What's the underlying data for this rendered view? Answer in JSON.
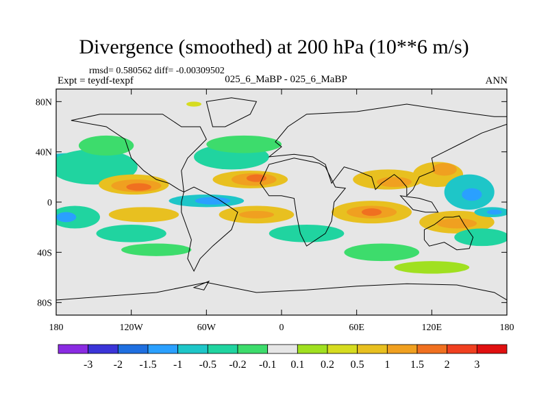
{
  "title": "Divergence (smoothed) at 200 hPa (10**6 m/s)",
  "stats": "rmsd= 0.580562 diff= -0.00309502",
  "expt": "Expt = teydf-texpf",
  "center_label": "025_6_MaBP - 025_6_MaBP",
  "season": "ANN",
  "map": {
    "lat_range": [
      -90,
      90
    ],
    "lon_range": [
      -180,
      180
    ],
    "lat_ticks": [
      {
        "value": 80,
        "label": "80N"
      },
      {
        "value": 40,
        "label": "40N"
      },
      {
        "value": 0,
        "label": "0"
      },
      {
        "value": -40,
        "label": "40S"
      },
      {
        "value": -80,
        "label": "80S"
      }
    ],
    "lon_ticks": [
      {
        "value": -180,
        "label": "180"
      },
      {
        "value": -120,
        "label": "120W"
      },
      {
        "value": -60,
        "label": "60W"
      },
      {
        "value": 0,
        "label": "0"
      },
      {
        "value": 60,
        "label": "60E"
      },
      {
        "value": 120,
        "label": "120E"
      },
      {
        "value": 180,
        "label": "180"
      }
    ],
    "background_color": "#e6e6e6",
    "regions": [
      {
        "name": "n-pacific-blue",
        "level": -1,
        "lon": -170,
        "lat": 30,
        "rx": 28,
        "ry": 9
      },
      {
        "name": "n-pacific-cyan",
        "level": -0.5,
        "lon": -150,
        "lat": 28,
        "rx": 35,
        "ry": 14
      },
      {
        "name": "n-pacific-green",
        "level": -0.2,
        "lon": -140,
        "lat": 45,
        "rx": 22,
        "ry": 8
      },
      {
        "name": "n-atlantic-cyan",
        "level": -0.5,
        "lon": -40,
        "lat": 36,
        "rx": 30,
        "ry": 10
      },
      {
        "name": "n-atlantic-green",
        "level": -0.2,
        "lon": -30,
        "lat": 46,
        "rx": 30,
        "ry": 7
      },
      {
        "name": "w-pacific-warm-yellow",
        "level": 0.5,
        "lon": -118,
        "lat": 14,
        "rx": 28,
        "ry": 8
      },
      {
        "name": "w-pacific-warm-orange",
        "level": 1,
        "lon": -116,
        "lat": 13,
        "rx": 20,
        "ry": 5
      },
      {
        "name": "w-pacific-warm-core",
        "level": 1.5,
        "lon": -114,
        "lat": 12,
        "rx": 10,
        "ry": 3
      },
      {
        "name": "atlantic-warm-yellow",
        "level": 0.5,
        "lon": -25,
        "lat": 18,
        "rx": 30,
        "ry": 7
      },
      {
        "name": "atlantic-warm-orange",
        "level": 1,
        "lon": -22,
        "lat": 18,
        "rx": 18,
        "ry": 5
      },
      {
        "name": "atlantic-warm-core",
        "level": 1.5,
        "lon": -20,
        "lat": 19,
        "rx": 8,
        "ry": 3
      },
      {
        "name": "india-warm-yellow",
        "level": 0.5,
        "lon": 85,
        "lat": 18,
        "rx": 28,
        "ry": 8
      },
      {
        "name": "india-warm-orange",
        "level": 1,
        "lon": 90,
        "lat": 16,
        "rx": 14,
        "ry": 4
      },
      {
        "name": "n-pacific-e-yellow",
        "level": 0.5,
        "lon": 125,
        "lat": 22,
        "rx": 20,
        "ry": 10
      },
      {
        "name": "n-pacific-e-orange",
        "level": 1,
        "lon": 130,
        "lat": 26,
        "rx": 10,
        "ry": 5
      },
      {
        "name": "nw-pacific-blue",
        "level": -1,
        "lon": 150,
        "lat": 8,
        "rx": 20,
        "ry": 14
      },
      {
        "name": "nw-pacific-core",
        "level": -1.5,
        "lon": 152,
        "lat": 6,
        "rx": 8,
        "ry": 5
      },
      {
        "name": "equator-east-pacific-blue",
        "level": -1,
        "lon": -60,
        "lat": 1,
        "rx": 30,
        "ry": 5
      },
      {
        "name": "equator-east-pacific-core",
        "level": -1.5,
        "lon": -55,
        "lat": 1,
        "rx": 14,
        "ry": 3
      },
      {
        "name": "sh-pacific-cyan",
        "level": -0.5,
        "lon": -165,
        "lat": -12,
        "rx": 20,
        "ry": 9
      },
      {
        "name": "sh-pacific-blue",
        "level": -1.5,
        "lon": -172,
        "lat": -12,
        "rx": 8,
        "ry": 4
      },
      {
        "name": "sh-mid-yellow",
        "level": 0.5,
        "lon": -110,
        "lat": -10,
        "rx": 28,
        "ry": 6
      },
      {
        "name": "sh-mid-atlantic-yellow",
        "level": 0.5,
        "lon": -20,
        "lat": -10,
        "rx": 30,
        "ry": 7
      },
      {
        "name": "sh-mid-atlantic-orange",
        "level": 1,
        "lon": -20,
        "lat": -10,
        "rx": 14,
        "ry": 3
      },
      {
        "name": "indian-warm-yellow",
        "level": 0.5,
        "lon": 72,
        "lat": -8,
        "rx": 32,
        "ry": 9
      },
      {
        "name": "indian-warm-orange",
        "level": 1,
        "lon": 72,
        "lat": -8,
        "rx": 20,
        "ry": 5
      },
      {
        "name": "indian-warm-core",
        "level": 1.5,
        "lon": 72,
        "lat": -8,
        "rx": 8,
        "ry": 3
      },
      {
        "name": "sh-west-pacific-yellow",
        "level": 0.5,
        "lon": 140,
        "lat": -16,
        "rx": 30,
        "ry": 9
      },
      {
        "name": "sh-west-pacific-orange",
        "level": 1,
        "lon": 140,
        "lat": -17,
        "rx": 16,
        "ry": 4
      },
      {
        "name": "sh-east-pacific-blue",
        "level": -1,
        "lon": 168,
        "lat": -8,
        "rx": 14,
        "ry": 4
      },
      {
        "name": "sh-east-pacific-core",
        "level": -1.5,
        "lon": 170,
        "lat": -8,
        "rx": 6,
        "ry": 2
      },
      {
        "name": "s-ocean-cyan",
        "level": -0.5,
        "lon": -120,
        "lat": -25,
        "rx": 28,
        "ry": 7
      },
      {
        "name": "s-ocean-cyan-2",
        "level": -0.5,
        "lon": 20,
        "lat": -25,
        "rx": 30,
        "ry": 7
      },
      {
        "name": "s-ocean-green",
        "level": -0.2,
        "lon": 80,
        "lat": -40,
        "rx": 30,
        "ry": 7
      },
      {
        "name": "s-ocean-cyan-3",
        "level": -0.5,
        "lon": 160,
        "lat": -28,
        "rx": 22,
        "ry": 7
      },
      {
        "name": "s-ocean-green-2",
        "level": -0.2,
        "lon": -100,
        "lat": -38,
        "rx": 28,
        "ry": 5
      },
      {
        "name": "far-south-green",
        "level": 0.1,
        "lon": 120,
        "lat": -52,
        "rx": 30,
        "ry": 5
      },
      {
        "name": "arctic-green",
        "level": 0.2,
        "lon": -70,
        "lat": 78,
        "rx": 6,
        "ry": 2
      }
    ],
    "continents": [
      {
        "name": "north-america",
        "points": [
          [
            -168,
            65
          ],
          [
            -140,
            60
          ],
          [
            -125,
            50
          ],
          [
            -120,
            35
          ],
          [
            -110,
            25
          ],
          [
            -100,
            18
          ],
          [
            -90,
            15
          ],
          [
            -82,
            10
          ],
          [
            -78,
            8
          ],
          [
            -80,
            25
          ],
          [
            -75,
            35
          ],
          [
            -65,
            45
          ],
          [
            -60,
            50
          ],
          [
            -65,
            60
          ],
          [
            -80,
            60
          ],
          [
            -95,
            70
          ],
          [
            -120,
            70
          ],
          [
            -145,
            70
          ],
          [
            -168,
            65
          ]
        ]
      },
      {
        "name": "south-america",
        "points": [
          [
            -78,
            8
          ],
          [
            -70,
            12
          ],
          [
            -50,
            2
          ],
          [
            -35,
            -8
          ],
          [
            -40,
            -22
          ],
          [
            -55,
            -35
          ],
          [
            -65,
            -45
          ],
          [
            -70,
            -55
          ],
          [
            -75,
            -45
          ],
          [
            -72,
            -30
          ],
          [
            -80,
            -8
          ],
          [
            -80,
            0
          ],
          [
            -78,
            8
          ]
        ]
      },
      {
        "name": "greenland",
        "points": [
          [
            -55,
            60
          ],
          [
            -45,
            60
          ],
          [
            -25,
            70
          ],
          [
            -20,
            80
          ],
          [
            -40,
            83
          ],
          [
            -60,
            80
          ],
          [
            -55,
            60
          ]
        ]
      },
      {
        "name": "europe-asia",
        "points": [
          [
            -10,
            36
          ],
          [
            0,
            44
          ],
          [
            -5,
            48
          ],
          [
            5,
            60
          ],
          [
            20,
            70
          ],
          [
            60,
            72
          ],
          [
            100,
            78
          ],
          [
            140,
            72
          ],
          [
            170,
            68
          ],
          [
            180,
            68
          ],
          [
            180,
            62
          ],
          [
            160,
            55
          ],
          [
            140,
            45
          ],
          [
            130,
            40
          ],
          [
            120,
            35
          ],
          [
            122,
            25
          ],
          [
            110,
            20
          ],
          [
            105,
            10
          ],
          [
            100,
            5
          ],
          [
            100,
            12
          ],
          [
            95,
            18
          ],
          [
            90,
            22
          ],
          [
            80,
            15
          ],
          [
            75,
            10
          ],
          [
            72,
            20
          ],
          [
            60,
            25
          ],
          [
            50,
            28
          ],
          [
            40,
            15
          ],
          [
            35,
            30
          ],
          [
            25,
            36
          ],
          [
            10,
            38
          ],
          [
            -10,
            36
          ]
        ]
      },
      {
        "name": "africa",
        "points": [
          [
            -17,
            15
          ],
          [
            -10,
            30
          ],
          [
            10,
            35
          ],
          [
            30,
            31
          ],
          [
            35,
            28
          ],
          [
            43,
            12
          ],
          [
            51,
            11
          ],
          [
            42,
            0
          ],
          [
            40,
            -15
          ],
          [
            35,
            -25
          ],
          [
            20,
            -35
          ],
          [
            15,
            -25
          ],
          [
            12,
            -10
          ],
          [
            10,
            3
          ],
          [
            0,
            5
          ],
          [
            -10,
            5
          ],
          [
            -17,
            15
          ]
        ]
      },
      {
        "name": "australia",
        "points": [
          [
            114,
            -22
          ],
          [
            122,
            -18
          ],
          [
            130,
            -12
          ],
          [
            137,
            -12
          ],
          [
            142,
            -11
          ],
          [
            146,
            -18
          ],
          [
            153,
            -28
          ],
          [
            150,
            -37
          ],
          [
            140,
            -38
          ],
          [
            130,
            -32
          ],
          [
            118,
            -35
          ],
          [
            114,
            -30
          ],
          [
            114,
            -22
          ]
        ]
      },
      {
        "name": "antarctica",
        "points": [
          [
            -180,
            -78
          ],
          [
            -140,
            -75
          ],
          [
            -100,
            -72
          ],
          [
            -60,
            -64
          ],
          [
            -20,
            -72
          ],
          [
            20,
            -70
          ],
          [
            60,
            -67
          ],
          [
            100,
            -65
          ],
          [
            140,
            -66
          ],
          [
            170,
            -72
          ],
          [
            180,
            -78
          ],
          [
            180,
            -90
          ],
          [
            -180,
            -90
          ],
          [
            -180,
            -78
          ]
        ]
      },
      {
        "name": "indonesia",
        "points": [
          [
            95,
            5
          ],
          [
            105,
            -6
          ],
          [
            115,
            -8
          ],
          [
            125,
            -8
          ],
          [
            120,
            0
          ],
          [
            110,
            3
          ],
          [
            95,
            5
          ]
        ]
      },
      {
        "name": "antarctic-peninsula",
        "points": [
          [
            -70,
            -68
          ],
          [
            -58,
            -63
          ],
          [
            -62,
            -70
          ],
          [
            -70,
            -68
          ]
        ]
      }
    ]
  },
  "colorbar": {
    "colors": [
      "#8a2be2",
      "#3b34d8",
      "#1f6fe0",
      "#2aa0ff",
      "#1ec6c8",
      "#20d4a0",
      "#3ddc6c",
      "#e6e6e6",
      "#a0e020",
      "#d6dc20",
      "#e8c020",
      "#f0a020",
      "#f07020",
      "#f04020",
      "#e01010"
    ],
    "labels": [
      "-3",
      "-2",
      "-1.5",
      "-1",
      "-0.5",
      "-0.2",
      "-0.1",
      "0.1",
      "0.2",
      "0.5",
      "1",
      "1.5",
      "2",
      "3"
    ]
  }
}
